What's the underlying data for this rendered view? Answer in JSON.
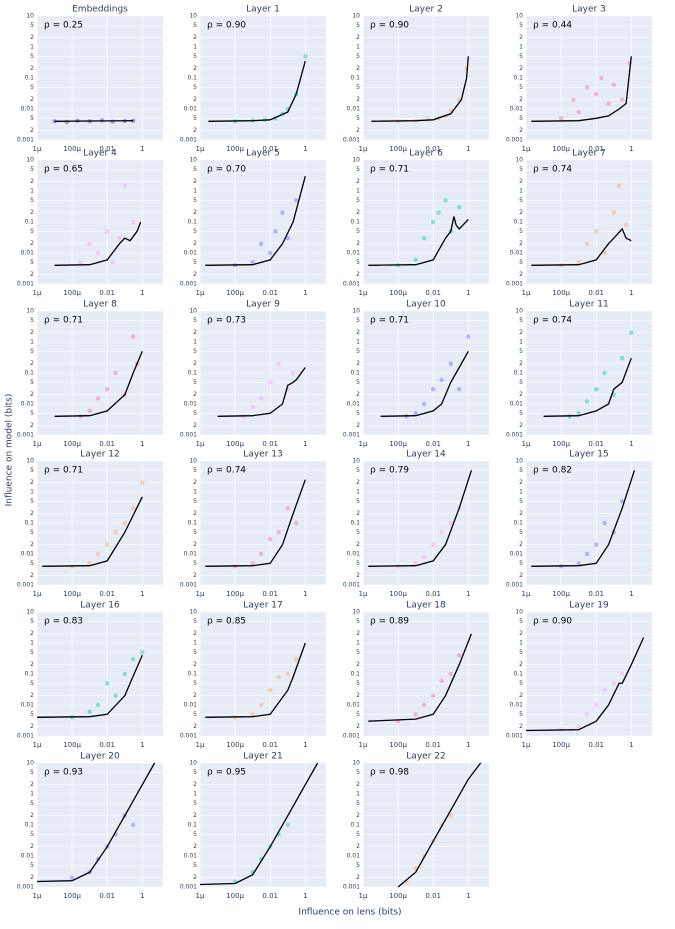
{
  "chart_data": {
    "type": "scatter",
    "x_label": "Influence on lens (bits)",
    "y_label": "Influence on model (bits)",
    "log_x": true,
    "log_y": true,
    "grid": true,
    "line_color": "#000000",
    "xlim": [
      1e-06,
      15
    ],
    "ylim": [
      0.001,
      10
    ],
    "xticks": [
      {
        "value": 1e-06,
        "label": "1μ"
      },
      {
        "value": 0.0001,
        "label": "100μ"
      },
      0.01,
      1
    ],
    "yticks": [
      0.001,
      {
        "value": 0.002,
        "label": "2"
      },
      {
        "value": 0.005,
        "label": "5"
      },
      0.01,
      {
        "value": 0.02,
        "label": "2"
      },
      {
        "value": 0.05,
        "label": "5"
      },
      0.1,
      {
        "value": 0.2,
        "label": "2"
      },
      {
        "value": 0.5,
        "label": "5"
      },
      1,
      2,
      5,
      10
    ],
    "panels": [
      {
        "title": "Embeddings",
        "annotation": "ρ = 0.25",
        "color": "#3f3fcf",
        "x": [
          1e-05,
          5e-05,
          0.0002,
          0.001,
          0.005,
          0.02,
          0.1,
          0.3
        ],
        "y": [
          0.004,
          0.0038,
          0.0042,
          0.004,
          0.0043,
          0.0039,
          0.0041,
          0.0042
        ],
        "line_x": [
          1e-05,
          0.001,
          0.3
        ],
        "line_y": [
          0.004,
          0.0041,
          0.0042
        ]
      },
      {
        "title": "Layer 1",
        "annotation": "ρ = 0.90",
        "color": "#00cc96",
        "x": [
          0.0001,
          0.001,
          0.005,
          0.02,
          0.05,
          0.1,
          0.3,
          1
        ],
        "y": [
          0.004,
          0.0043,
          0.0045,
          0.005,
          0.007,
          0.01,
          0.03,
          0.5
        ],
        "line_x": [
          3e-06,
          0.001,
          0.01,
          0.1,
          0.3,
          1
        ],
        "line_y": [
          0.004,
          0.0042,
          0.0045,
          0.008,
          0.03,
          0.35
        ]
      },
      {
        "title": "Layer 2",
        "annotation": "ρ = 0.90",
        "color": "#ffa15a",
        "x": [
          0.0001,
          0.001,
          0.005,
          0.02,
          0.05,
          0.1,
          0.3,
          0.8
        ],
        "y": [
          0.004,
          0.0042,
          0.0046,
          0.005,
          0.006,
          0.009,
          0.02,
          0.2
        ],
        "line_x": [
          3e-06,
          0.001,
          0.01,
          0.1,
          0.4,
          0.8,
          1
        ],
        "line_y": [
          0.004,
          0.0042,
          0.0045,
          0.007,
          0.02,
          0.1,
          0.5
        ]
      },
      {
        "title": "Layer 3",
        "annotation": "ρ = 0.44",
        "color": "#ff6692",
        "x": [
          0.0001,
          0.0005,
          0.001,
          0.003,
          0.01,
          0.02,
          0.05,
          0.1,
          0.3,
          0.8
        ],
        "y": [
          0.005,
          0.02,
          0.008,
          0.05,
          0.03,
          0.1,
          0.015,
          0.06,
          0.02,
          0.3
        ],
        "line_x": [
          2e-06,
          0.001,
          0.01,
          0.05,
          0.2,
          0.5,
          1
        ],
        "line_y": [
          0.004,
          0.0042,
          0.005,
          0.006,
          0.01,
          0.015,
          0.5
        ]
      },
      {
        "title": "Layer 4",
        "annotation": "ρ = 0.65",
        "color": "#ff97ff",
        "x": [
          0.0003,
          0.001,
          0.003,
          0.01,
          0.02,
          0.05,
          0.1,
          0.3
        ],
        "y": [
          0.005,
          0.02,
          0.01,
          0.05,
          0.005,
          0.03,
          1.5,
          0.1
        ],
        "line_x": [
          1e-05,
          0.001,
          0.01,
          0.05,
          0.1,
          0.2,
          0.5,
          0.8
        ],
        "line_y": [
          0.004,
          0.0042,
          0.006,
          0.02,
          0.03,
          0.025,
          0.05,
          0.1
        ]
      },
      {
        "title": "Layer 5",
        "annotation": "ρ = 0.70",
        "color": "#636efa",
        "x": [
          0.0001,
          0.001,
          0.003,
          0.01,
          0.02,
          0.05,
          0.1,
          0.3
        ],
        "y": [
          0.004,
          0.005,
          0.02,
          0.01,
          0.05,
          0.2,
          0.03,
          0.5
        ],
        "line_x": [
          2e-06,
          0.001,
          0.01,
          0.05,
          0.2,
          1
        ],
        "line_y": [
          0.004,
          0.0042,
          0.006,
          0.02,
          0.1,
          3
        ]
      },
      {
        "title": "Layer 6",
        "annotation": "ρ = 0.71",
        "color": "#00cc96",
        "x": [
          0.0001,
          0.001,
          0.003,
          0.01,
          0.02,
          0.05,
          0.1,
          0.3
        ],
        "y": [
          0.004,
          0.006,
          0.03,
          0.1,
          0.2,
          0.5,
          0.05,
          0.3
        ],
        "line_x": [
          2e-06,
          0.001,
          0.01,
          0.05,
          0.1,
          0.15,
          0.2,
          0.3,
          1
        ],
        "line_y": [
          0.004,
          0.0042,
          0.006,
          0.03,
          0.05,
          0.15,
          0.08,
          0.06,
          0.12
        ]
      },
      {
        "title": "Layer 7",
        "annotation": "ρ = 0.74",
        "color": "#ffa15a",
        "x": [
          0.0001,
          0.001,
          0.003,
          0.01,
          0.03,
          0.1,
          0.2,
          0.5
        ],
        "y": [
          0.004,
          0.005,
          0.02,
          0.05,
          0.01,
          0.2,
          1.5,
          0.08
        ],
        "line_x": [
          2e-06,
          0.001,
          0.01,
          0.05,
          0.1,
          0.3,
          0.5,
          1
        ],
        "line_y": [
          0.004,
          0.0042,
          0.006,
          0.02,
          0.03,
          0.06,
          0.03,
          0.025
        ]
      },
      {
        "title": "Layer 8",
        "annotation": "ρ = 0.71",
        "color": "#ff6692",
        "x": [
          0.0003,
          0.001,
          0.003,
          0.01,
          0.03,
          0.1,
          0.3,
          0.5
        ],
        "y": [
          0.004,
          0.006,
          0.015,
          0.03,
          0.1,
          0.02,
          1.5,
          0.2
        ],
        "line_x": [
          1e-05,
          0.001,
          0.01,
          0.1,
          0.3,
          1
        ],
        "line_y": [
          0.004,
          0.0042,
          0.006,
          0.02,
          0.1,
          0.5
        ]
      },
      {
        "title": "Layer 9",
        "annotation": "ρ = 0.73",
        "color": "#ff97ff",
        "x": [
          0.0003,
          0.001,
          0.003,
          0.01,
          0.03,
          0.1,
          0.2
        ],
        "y": [
          0.004,
          0.008,
          0.015,
          0.05,
          0.2,
          0.03,
          0.1
        ],
        "line_x": [
          1e-05,
          0.001,
          0.01,
          0.05,
          0.1,
          0.2,
          0.3,
          1
        ],
        "line_y": [
          0.004,
          0.0042,
          0.005,
          0.01,
          0.04,
          0.05,
          0.06,
          0.15
        ]
      },
      {
        "title": "Layer 10",
        "annotation": "ρ = 0.71",
        "color": "#636efa",
        "x": [
          0.0003,
          0.001,
          0.003,
          0.01,
          0.03,
          0.1,
          0.3,
          1
        ],
        "y": [
          0.004,
          0.005,
          0.01,
          0.03,
          0.06,
          0.2,
          0.03,
          1.5
        ],
        "line_x": [
          1e-05,
          0.001,
          0.01,
          0.03,
          0.1,
          0.3,
          1
        ],
        "line_y": [
          0.004,
          0.0042,
          0.006,
          0.01,
          0.05,
          0.15,
          0.5
        ]
      },
      {
        "title": "Layer 11",
        "annotation": "ρ = 0.74",
        "color": "#00cc96",
        "x": [
          0.0003,
          0.001,
          0.003,
          0.01,
          0.03,
          0.1,
          0.3,
          1
        ],
        "y": [
          0.004,
          0.005,
          0.012,
          0.03,
          0.1,
          0.02,
          0.3,
          2
        ],
        "line_x": [
          1e-05,
          0.001,
          0.01,
          0.05,
          0.1,
          0.3,
          1
        ],
        "line_y": [
          0.004,
          0.0042,
          0.006,
          0.01,
          0.03,
          0.05,
          0.3
        ]
      },
      {
        "title": "Layer 12",
        "annotation": "ρ = 0.71",
        "color": "#ffa15a",
        "x": [
          0.0001,
          0.001,
          0.003,
          0.01,
          0.03,
          0.1,
          0.3,
          1
        ],
        "y": [
          0.004,
          0.005,
          0.01,
          0.02,
          0.05,
          0.1,
          0.3,
          2
        ],
        "line_x": [
          2e-06,
          0.001,
          0.01,
          0.1,
          1
        ],
        "line_y": [
          0.004,
          0.0042,
          0.006,
          0.05,
          0.7
        ]
      },
      {
        "title": "Layer 13",
        "annotation": "ρ = 0.74",
        "color": "#ff6692",
        "x": [
          0.0001,
          0.001,
          0.003,
          0.01,
          0.03,
          0.1,
          0.3
        ],
        "y": [
          0.004,
          0.005,
          0.01,
          0.03,
          0.05,
          0.3,
          0.1
        ],
        "line_x": [
          2e-06,
          0.001,
          0.01,
          0.05,
          0.2,
          1
        ],
        "line_y": [
          0.004,
          0.0042,
          0.005,
          0.02,
          0.2,
          2.5
        ]
      },
      {
        "title": "Layer 14",
        "annotation": "ρ = 0.79",
        "color": "#ff97ff",
        "x": [
          0.0001,
          0.001,
          0.003,
          0.01,
          0.03,
          0.1,
          0.3
        ],
        "y": [
          0.004,
          0.005,
          0.008,
          0.02,
          0.05,
          0.1,
          0.3
        ],
        "line_x": [
          2e-06,
          0.001,
          0.01,
          0.05,
          0.3,
          1.5
        ],
        "line_y": [
          0.004,
          0.0042,
          0.006,
          0.02,
          0.3,
          5
        ]
      },
      {
        "title": "Layer 15",
        "annotation": "ρ = 0.82",
        "color": "#636efa",
        "x": [
          0.0001,
          0.001,
          0.003,
          0.01,
          0.03,
          0.1,
          0.3
        ],
        "y": [
          0.004,
          0.005,
          0.01,
          0.02,
          0.1,
          0.05,
          0.5
        ],
        "line_x": [
          2e-06,
          0.001,
          0.01,
          0.05,
          0.3,
          1.5
        ],
        "line_y": [
          0.004,
          0.0042,
          0.005,
          0.02,
          0.3,
          5
        ]
      },
      {
        "title": "Layer 16",
        "annotation": "ρ = 0.83",
        "color": "#00cc96",
        "x": [
          0.0001,
          0.001,
          0.003,
          0.01,
          0.03,
          0.1,
          0.3,
          1
        ],
        "y": [
          0.004,
          0.006,
          0.01,
          0.05,
          0.02,
          0.1,
          0.3,
          0.5
        ],
        "line_x": [
          1e-06,
          0.001,
          0.01,
          0.1,
          0.2,
          1
        ],
        "line_y": [
          0.004,
          0.0042,
          0.005,
          0.02,
          0.05,
          0.4
        ]
      },
      {
        "title": "Layer 17",
        "annotation": "ρ = 0.85",
        "color": "#ffa15a",
        "x": [
          0.0001,
          0.001,
          0.003,
          0.01,
          0.03,
          0.1,
          0.3
        ],
        "y": [
          0.004,
          0.005,
          0.01,
          0.03,
          0.08,
          0.1,
          0.3
        ],
        "line_x": [
          2e-06,
          0.001,
          0.01,
          0.1,
          0.2,
          1
        ],
        "line_y": [
          0.004,
          0.0042,
          0.005,
          0.03,
          0.08,
          1
        ]
      },
      {
        "title": "Layer 18",
        "annotation": "ρ = 0.89",
        "color": "#ff6692",
        "x": [
          0.0001,
          0.001,
          0.003,
          0.01,
          0.03,
          0.1,
          0.3
        ],
        "y": [
          0.003,
          0.005,
          0.01,
          0.02,
          0.06,
          0.1,
          0.4
        ],
        "line_x": [
          2e-06,
          0.001,
          0.01,
          0.05,
          0.3,
          1.5
        ],
        "line_y": [
          0.003,
          0.0035,
          0.005,
          0.02,
          0.2,
          2
        ]
      },
      {
        "title": "Layer 19",
        "annotation": "ρ = 0.90",
        "color": "#ff97ff",
        "x": [
          0.0001,
          0.001,
          0.003,
          0.01,
          0.03,
          0.1,
          0.3
        ],
        "y": [
          0.0016,
          0.002,
          0.005,
          0.01,
          0.03,
          0.05,
          0.1
        ],
        "line_x": [
          1e-06,
          0.001,
          0.01,
          0.05,
          0.2,
          0.3,
          1,
          5
        ],
        "line_y": [
          0.0015,
          0.0016,
          0.003,
          0.01,
          0.05,
          0.05,
          0.2,
          1.5
        ]
      },
      {
        "title": "Layer 20",
        "annotation": "ρ = 0.93",
        "color": "#636efa",
        "x": [
          0.0001,
          0.001,
          0.003,
          0.01,
          0.03,
          0.1,
          0.3
        ],
        "y": [
          0.002,
          0.003,
          0.008,
          0.02,
          0.05,
          0.2,
          0.1
        ],
        "line_x": [
          1e-06,
          0.0001,
          0.001,
          0.01,
          0.1,
          1,
          5
        ],
        "line_y": [
          0.0015,
          0.0016,
          0.003,
          0.02,
          0.2,
          2,
          10
        ]
      },
      {
        "title": "Layer 21",
        "annotation": "ρ = 0.95",
        "color": "#00cc96",
        "x": [
          0.0001,
          0.001,
          0.003,
          0.01,
          0.03,
          0.1
        ],
        "y": [
          0.0015,
          0.003,
          0.008,
          0.02,
          0.05,
          0.1
        ],
        "line_x": [
          1e-06,
          0.0001,
          0.001,
          0.01,
          0.1,
          1,
          5
        ],
        "line_y": [
          0.0012,
          0.0013,
          0.0025,
          0.02,
          0.2,
          2,
          10
        ]
      },
      {
        "title": "Layer 22",
        "annotation": "ρ = 0.98",
        "color": "#ffa15a",
        "x": [
          0.0003,
          0.001,
          0.003,
          0.01,
          0.03,
          0.1
        ],
        "y": [
          0.0015,
          0.004,
          0.01,
          0.03,
          0.1,
          0.2
        ],
        "line_x": [
          0.0001,
          0.001,
          0.01,
          0.1,
          1,
          5
        ],
        "line_y": [
          0.001,
          0.003,
          0.03,
          0.3,
          3,
          10
        ]
      }
    ]
  }
}
